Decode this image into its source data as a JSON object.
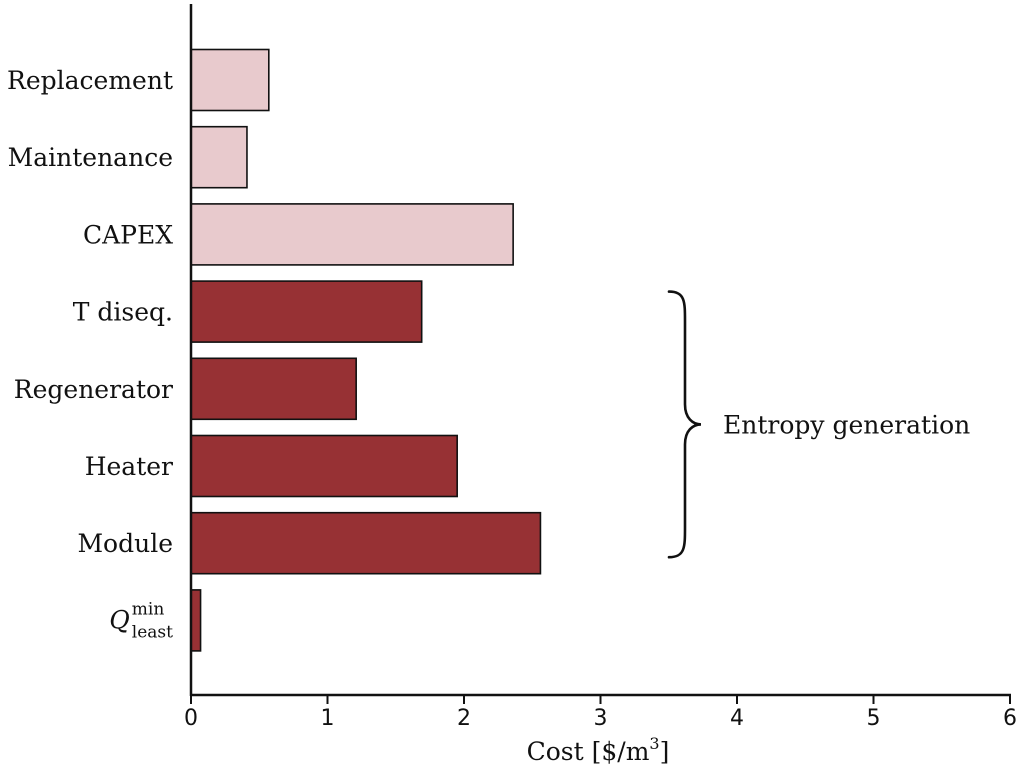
{
  "chart_data": {
    "type": "bar",
    "orientation": "horizontal",
    "categories": [
      {
        "label": "Replacement",
        "value": 0.57,
        "group": "cost"
      },
      {
        "label": "Maintenance",
        "value": 0.41,
        "group": "cost"
      },
      {
        "label": "CAPEX",
        "value": 2.36,
        "group": "cost"
      },
      {
        "label": "T diseq.",
        "value": 1.69,
        "group": "entropy"
      },
      {
        "label": "Regenerator",
        "value": 1.21,
        "group": "entropy"
      },
      {
        "label": "Heater",
        "value": 1.95,
        "group": "entropy"
      },
      {
        "label": "Module",
        "value": 2.56,
        "group": "entropy"
      },
      {
        "label": "Q_least^min",
        "value": 0.07,
        "group": "entropy",
        "math": {
          "base": "Q",
          "sup": "min",
          "sub": "least"
        }
      }
    ],
    "xlabel": "Cost [$/m",
    "xlabel_sup": "3",
    "xlabel_close": "]",
    "xlim": [
      0,
      6
    ],
    "xticks": [
      "0",
      "1",
      "2",
      "3",
      "4",
      "5",
      "6"
    ],
    "grid": false,
    "colors": {
      "cost": "#e8cacd",
      "entropy": "#973134",
      "edge": "#111111"
    },
    "annotation": {
      "text": "Entropy generation",
      "brace_from": "T diseq.",
      "brace_to": "Module"
    }
  }
}
